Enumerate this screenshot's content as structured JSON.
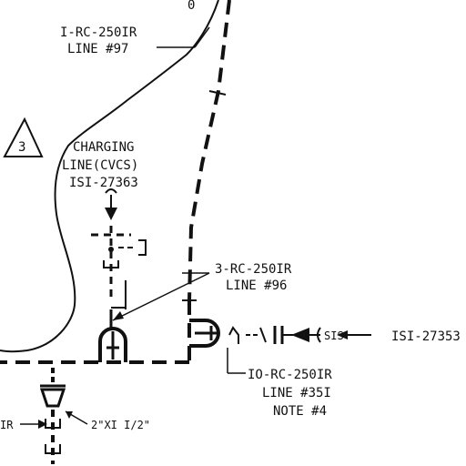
{
  "labels": {
    "line97": {
      "line1": "I-RC-250IR",
      "line2": "LINE #97"
    },
    "charging": {
      "line1": "CHARGING",
      "line2": "LINE(CVCS)",
      "line3": "ISI-27363"
    },
    "line96": {
      "line1": "3-RC-250IR",
      "line2": "LINE #96"
    },
    "line351": {
      "line1": "IO-RC-250IR",
      "line2": "LINE #35I",
      "line3": "NOTE #4"
    },
    "sis": "SIS",
    "isi27353": "ISI-27353",
    "reducer": "2\"XI I/2\"",
    "ir_left": "IR",
    "top_fragment": "0",
    "revision_triangle": "3"
  }
}
